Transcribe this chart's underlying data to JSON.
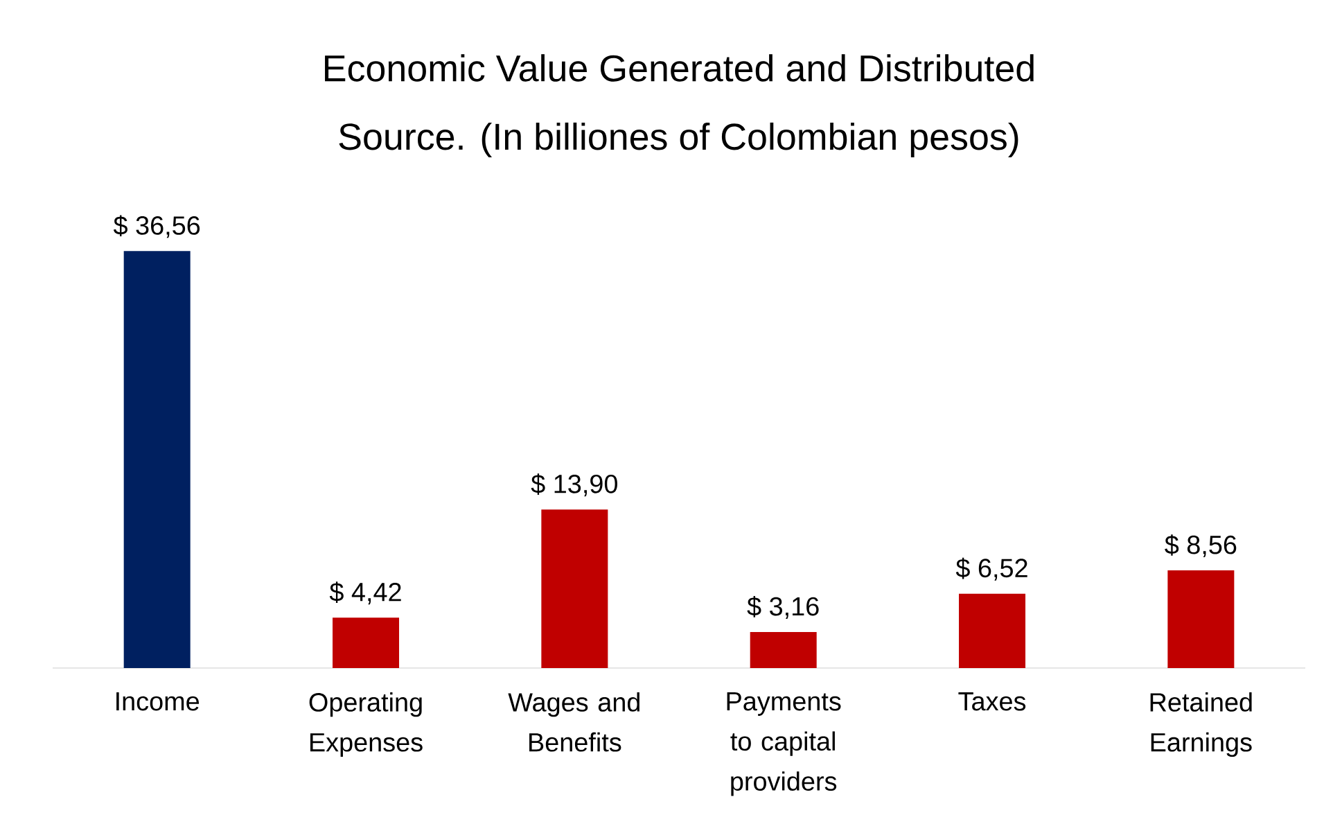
{
  "chart_data": {
    "type": "bar",
    "title": "Economic Value Generated and Distributed",
    "subtitle": "Source. (In billiones of Colombian pesos)",
    "categories": [
      "Income",
      "Operating Expenses",
      "Wages and Benefits",
      "Payments to capital providers",
      "Taxes",
      "Retained Earnings"
    ],
    "values": [
      36.56,
      4.42,
      13.9,
      3.16,
      6.52,
      8.56
    ],
    "value_labels": [
      "$ 36,56",
      "$ 4,42",
      "$ 13,90",
      "$ 3,16",
      "$ 6,52",
      "$ 8,56"
    ],
    "colors": [
      "#002060",
      "#c00000",
      "#c00000",
      "#c00000",
      "#c00000",
      "#c00000"
    ]
  }
}
